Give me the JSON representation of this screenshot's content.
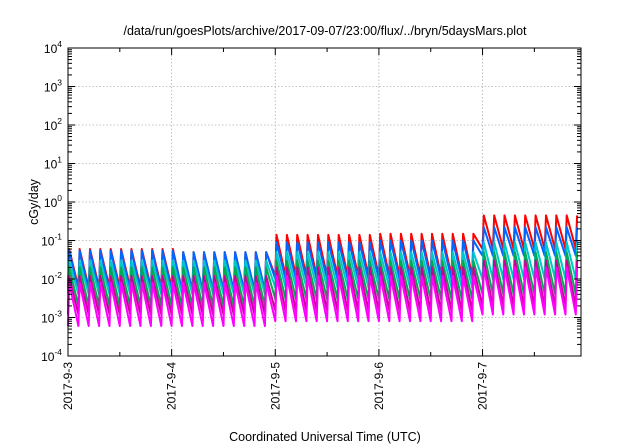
{
  "chart_data": {
    "type": "line",
    "title": "/data/run/goesPlots/archive/2017-09-07/23:00/flux/../bryn/5daysMars.plot",
    "xlabel": "Coordinated Universal Time (UTC)",
    "ylabel": "cGy/day",
    "y_scale": "log",
    "ylim_exponents": [
      -4,
      4
    ],
    "y_tick_base": "10",
    "y_tick_exponents": [
      "-4",
      "-3",
      "-2",
      "-1",
      "0",
      "1",
      "2",
      "3",
      "4"
    ],
    "x_tick_labels": [
      "2017-9-3",
      "2017-9-4",
      "2017-9-5",
      "2017-9-6",
      "2017-9-7"
    ],
    "x_range_days": [
      0,
      4.95
    ],
    "grid": true,
    "legend": "none",
    "sawtooth_period_days": 0.1,
    "series": [
      {
        "color": "#ff0000",
        "peak": [
          0.06,
          0.05,
          0.14,
          0.15,
          0.45
        ],
        "trough": [
          0.006,
          0.005,
          0.012,
          0.012,
          0.06
        ]
      },
      {
        "color": "#0066ff",
        "peak": [
          0.055,
          0.05,
          0.09,
          0.1,
          0.22
        ],
        "trough": [
          0.005,
          0.005,
          0.01,
          0.01,
          0.04
        ]
      },
      {
        "color": "#00c8c8",
        "peak": [
          0.03,
          0.03,
          0.05,
          0.05,
          0.09
        ],
        "trough": [
          0.004,
          0.004,
          0.006,
          0.006,
          0.01
        ]
      },
      {
        "color": "#00aa55",
        "peak": [
          0.02,
          0.02,
          0.03,
          0.03,
          0.05
        ],
        "trough": [
          0.002,
          0.002,
          0.003,
          0.003,
          0.004
        ]
      },
      {
        "color": "#cc0099",
        "peak": [
          0.012,
          0.012,
          0.02,
          0.02,
          0.03
        ],
        "trough": [
          0.0012,
          0.0012,
          0.0015,
          0.0015,
          0.002
        ]
      },
      {
        "color": "#ff00ff",
        "peak": [
          0.008,
          0.008,
          0.012,
          0.012,
          0.02
        ],
        "trough": [
          0.0006,
          0.0006,
          0.0008,
          0.0008,
          0.0012
        ]
      }
    ]
  }
}
